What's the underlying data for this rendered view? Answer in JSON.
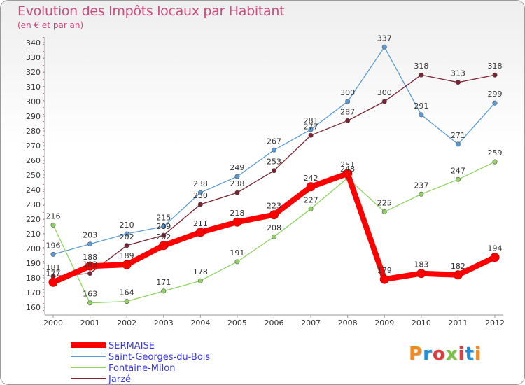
{
  "title": "Evolution des Impôts locaux par Habitant",
  "subtitle": "(en € et par an)",
  "logo": {
    "text": "Proxiti",
    "colors": [
      "#f28c1e",
      "#1f8fd6",
      "#e23b3b",
      "#7cc242",
      "#e23b3b",
      "#1f8fd6",
      "#f28c1e"
    ]
  },
  "chart_data": {
    "type": "line",
    "x": [
      "2000",
      "2001",
      "2002",
      "2003",
      "2004",
      "2005",
      "2006",
      "2007",
      "2008",
      "2009",
      "2010",
      "2011",
      "2012"
    ],
    "ylim": [
      160,
      340
    ],
    "yticks": [
      160,
      170,
      180,
      190,
      200,
      210,
      220,
      230,
      240,
      250,
      260,
      270,
      280,
      290,
      300,
      310,
      320,
      330,
      340
    ],
    "grid": false,
    "legend_position": "bottom-left",
    "series": [
      {
        "name": "SERMAISE",
        "color": "#ff0000",
        "values": [
          177,
          188,
          189,
          202,
          211,
          218,
          223,
          242,
          251,
          179,
          183,
          182,
          194
        ]
      },
      {
        "name": "Saint-Georges-du-Bois",
        "color": "#5b9bd5",
        "values": [
          196,
          203,
          210,
          215,
          238,
          249,
          267,
          281,
          300,
          337,
          291,
          271,
          299
        ]
      },
      {
        "name": "Fontaine-Milon",
        "color": "#8fd460",
        "values": [
          216,
          163,
          164,
          171,
          178,
          191,
          208,
          227,
          248,
          225,
          237,
          247,
          259
        ]
      },
      {
        "name": "Jarzé",
        "color": "#7a2230",
        "values": [
          181,
          183,
          202,
          209,
          230,
          238,
          253,
          277,
          287,
          300,
          318,
          313,
          318
        ]
      }
    ]
  }
}
